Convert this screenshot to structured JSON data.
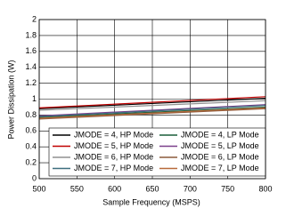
{
  "chart_data": {
    "type": "line",
    "x_label": "Sample Frequency (MSPS)",
    "y_label": "Power Dissipation (W)",
    "x": [
      500,
      800
    ],
    "xlim": [
      500,
      800
    ],
    "xticks": [
      500,
      550,
      600,
      650,
      700,
      750,
      800
    ],
    "ylim": [
      0,
      2
    ],
    "yticks": [
      0,
      0.2,
      0.4,
      0.6,
      0.8,
      1,
      1.2,
      1.4,
      1.6,
      1.8,
      2
    ],
    "grid": true,
    "legend": "lower right",
    "series": [
      {
        "name": "JMODE = 4, HP Mode",
        "color": "#000000",
        "values": [
          0.88,
          1.01
        ]
      },
      {
        "name": "JMODE = 4, LP Mode",
        "color": "#1a5e3a",
        "values": [
          0.77,
          0.9
        ]
      },
      {
        "name": "JMODE = 5, HP Mode",
        "color": "#c00000",
        "values": [
          0.89,
          1.03
        ]
      },
      {
        "name": "JMODE = 5, LP Mode",
        "color": "#7a3f8a",
        "values": [
          0.79,
          0.93
        ]
      },
      {
        "name": "JMODE = 6, HP Mode",
        "color": "#909090",
        "values": [
          0.86,
          0.98
        ]
      },
      {
        "name": "JMODE = 6, LP Mode",
        "color": "#8b5a3c",
        "values": [
          0.75,
          0.88
        ]
      },
      {
        "name": "JMODE = 7, HP Mode",
        "color": "#3d6e7e",
        "values": [
          0.78,
          0.92
        ]
      },
      {
        "name": "JMODE = 7, LP Mode",
        "color": "#b86a3a",
        "values": [
          0.76,
          0.89
        ]
      }
    ]
  }
}
